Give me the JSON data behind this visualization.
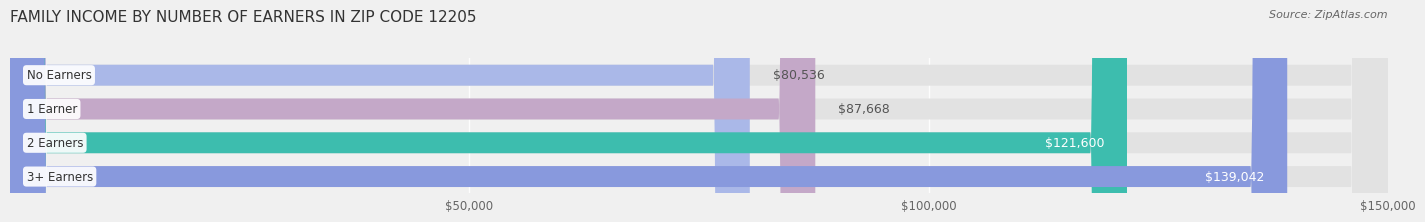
{
  "title": "FAMILY INCOME BY NUMBER OF EARNERS IN ZIP CODE 12205",
  "source": "Source: ZipAtlas.com",
  "categories": [
    "No Earners",
    "1 Earner",
    "2 Earners",
    "3+ Earners"
  ],
  "values": [
    80536,
    87668,
    121600,
    139042
  ],
  "bar_colors": [
    "#aab8e8",
    "#c4a8c8",
    "#3dbdae",
    "#8899dd"
  ],
  "label_colors": [
    "#555555",
    "#555555",
    "#ffffff",
    "#ffffff"
  ],
  "xlim_min": 0,
  "xlim_max": 150000,
  "x_ticks": [
    50000,
    100000,
    150000
  ],
  "x_tick_labels": [
    "$50,000",
    "$100,000",
    "$150,000"
  ],
  "background_color": "#f0f0f0",
  "bar_background_color": "#e2e2e2",
  "title_fontsize": 11,
  "source_fontsize": 8,
  "bar_label_fontsize": 9,
  "category_fontsize": 8.5,
  "tick_fontsize": 8.5,
  "bar_height": 0.62,
  "fig_width": 14.06,
  "fig_height": 2.33
}
